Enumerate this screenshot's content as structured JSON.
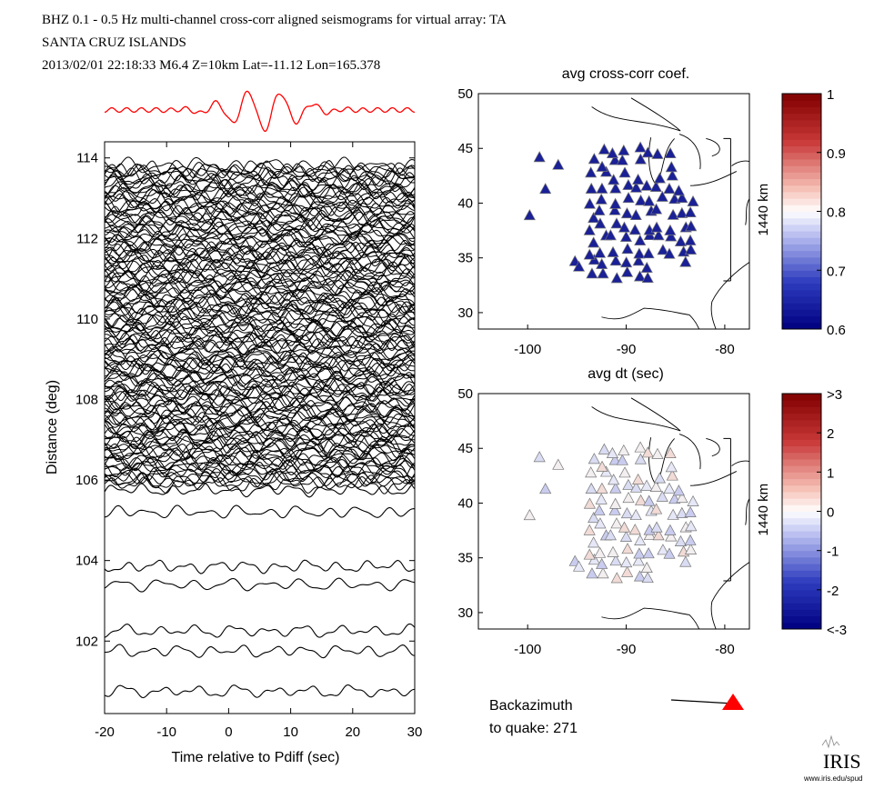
{
  "header": {
    "line1": "BHZ  0.1 - 0.5 Hz  multi-channel cross-corr aligned seismograms for virtual array: TA",
    "line2": "SANTA CRUZ ISLANDS",
    "line3": "2013/02/01  22:18:33  M6.4  Z=10km Lat=-11.12 Lon=165.378"
  },
  "chart_data": [
    {
      "type": "line",
      "name": "seismogram-record-section",
      "xlabel": "Time relative to Pdiff (sec)",
      "ylabel": "Distance (deg)",
      "xlim": [
        -20,
        30
      ],
      "ylim": [
        100.2,
        114.4
      ],
      "xticks": [
        -20,
        -10,
        0,
        10,
        20,
        30
      ],
      "yticks": [
        102,
        104,
        106,
        108,
        110,
        112,
        114
      ],
      "stack_color": "#ff0000",
      "trace_color": "#000000",
      "isolated_trace_distances": [
        100.75,
        101.75,
        102.25,
        103.4,
        103.85,
        105.2,
        105.75
      ],
      "dense_trace_range": [
        105.9,
        113.8
      ]
    },
    {
      "type": "scatter",
      "name": "avg-cross-corr-map",
      "title": "avg cross-corr coef.",
      "xlim": [
        -105,
        -77.5
      ],
      "ylim": [
        28.5,
        50
      ],
      "xticks": [
        -100,
        -90,
        -80
      ],
      "yticks": [
        30,
        35,
        40,
        45,
        50
      ],
      "scale_bar_label": "1440 km",
      "colorbar": {
        "min": 0.6,
        "max": 1,
        "ticks": [
          "0.6",
          "0.7",
          "0.8",
          "0.9",
          "1"
        ]
      },
      "station_color": "#1a2096"
    },
    {
      "type": "scatter",
      "name": "avg-dt-map",
      "title": "avg dt (sec)",
      "xlim": [
        -105,
        -77.5
      ],
      "ylim": [
        28.5,
        50
      ],
      "xticks": [
        -100,
        -90,
        -80
      ],
      "yticks": [
        30,
        35,
        40,
        45,
        50
      ],
      "scale_bar_label": "1440 km",
      "colorbar": {
        "min": -3,
        "max": 3,
        "ticks": [
          "<-3",
          "-2",
          "-1",
          "0",
          "1",
          "2",
          ">3"
        ]
      },
      "station_colors": [
        "#d9dcf2",
        "#e6e7f7",
        "#f3eef0",
        "#f2dbd6",
        "#c9ccee"
      ]
    }
  ],
  "backazimuth": {
    "line1": "Backazimuth",
    "line2": "to quake:  271",
    "value": 271
  },
  "logo": {
    "name": "IRIS",
    "url": "www.iris.edu/spud"
  }
}
